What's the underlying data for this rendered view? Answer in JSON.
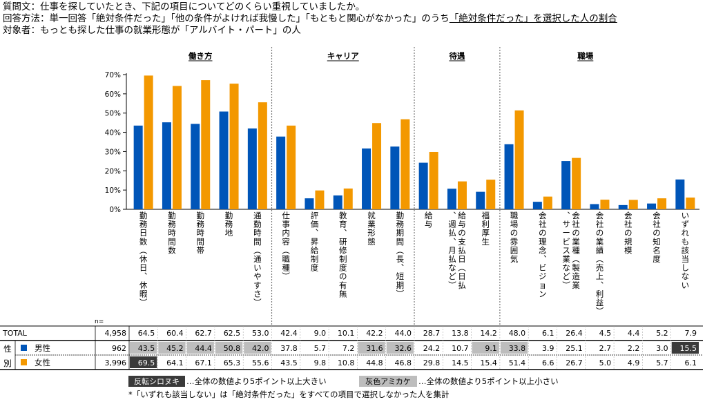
{
  "header": {
    "question": "質問文：仕事を探していたとき、下記の項目についてどのくらい重視していましたか。",
    "method_prefix": "回答方法：単一回答「絶対条件だった」「他の条件がよければ我慢した」「もともと関心がなかった」のうち",
    "method_underlined": "「絶対条件だった」を選択した人の割合",
    "target": "対象者：もっとも探した仕事の就業形態が「アルバイト・パート」の人"
  },
  "chart_data": {
    "type": "bar",
    "groups": [
      {
        "label": "働き方",
        "start": 0,
        "end": 4
      },
      {
        "label": "キャリア",
        "start": 5,
        "end": 9
      },
      {
        "label": "待遇",
        "start": 10,
        "end": 12
      },
      {
        "label": "職場",
        "start": 13,
        "end": 18
      }
    ],
    "categories": [
      "勤務日数（休日、休暇）",
      "勤務時間数",
      "勤務時間帯",
      "勤務地",
      "通勤時間（通いやすさ）",
      "仕事内容（職種）",
      "評価、昇給制度",
      "教育、研修制度の有無",
      "就業形態",
      "勤務期間（長、短期）",
      "給与",
      "給与の支払日（日払、週払、月払など）",
      "福利厚生",
      "職場の雰囲気",
      "会社の理念、ビジョン",
      "会社の業種（製造業、サービス業など）",
      "会社の業績（売上、利益）",
      "会社の規模",
      "会社の知名度",
      "いずれも該当しない"
    ],
    "series": [
      {
        "name": "男性",
        "n": "962",
        "color": "#0055B8",
        "values": [
          43.5,
          45.2,
          44.4,
          50.8,
          42.0,
          37.8,
          5.7,
          7.2,
          31.6,
          32.6,
          24.2,
          10.7,
          9.1,
          33.8,
          3.9,
          25.1,
          2.7,
          2.2,
          3.0,
          15.5
        ],
        "marks": [
          "gray",
          "gray",
          "gray",
          "gray",
          "gray",
          "",
          "",
          "",
          "gray",
          "gray",
          "",
          "",
          "gray",
          "gray",
          "",
          "",
          "",
          "",
          "",
          "dark"
        ]
      },
      {
        "name": "女性",
        "n": "3,996",
        "color": "#F39800",
        "values": [
          69.5,
          64.1,
          67.1,
          65.3,
          55.6,
          43.5,
          9.8,
          10.8,
          44.8,
          46.8,
          29.8,
          14.5,
          15.4,
          51.4,
          6.6,
          26.7,
          5.0,
          4.9,
          5.7,
          6.1
        ],
        "marks": [
          "dark",
          "",
          "",
          "",
          "",
          "",
          "",
          "",
          "",
          "",
          "",
          "",
          "",
          "",
          "",
          "",
          "",
          "",
          "",
          ""
        ]
      }
    ],
    "total": {
      "label": "TOTAL",
      "n": "4,958",
      "values": [
        64.5,
        60.4,
        62.7,
        62.5,
        53.0,
        42.4,
        9.0,
        10.1,
        42.2,
        44.0,
        28.7,
        13.8,
        14.2,
        48.0,
        6.1,
        26.4,
        4.5,
        4.4,
        5.2,
        7.9
      ]
    },
    "yticks": [
      "0%",
      "10%",
      "20%",
      "30%",
      "40%",
      "50%",
      "60%",
      "70%"
    ],
    "ylim": [
      0,
      70
    ],
    "n_label": "n=",
    "side_label": [
      "性",
      "別"
    ],
    "legend": {
      "dark_label": "反転シロヌキ",
      "dark_text": "…全体の数値より5ポイント以上大きい",
      "gray_label": "灰色アミカケ",
      "gray_text": "…全体の数値より5ポイント以上小さい"
    },
    "footnote": "*「いずれも該当しない」は「絶対条件だった」をすべての項目で選択しなかった人を集計"
  }
}
